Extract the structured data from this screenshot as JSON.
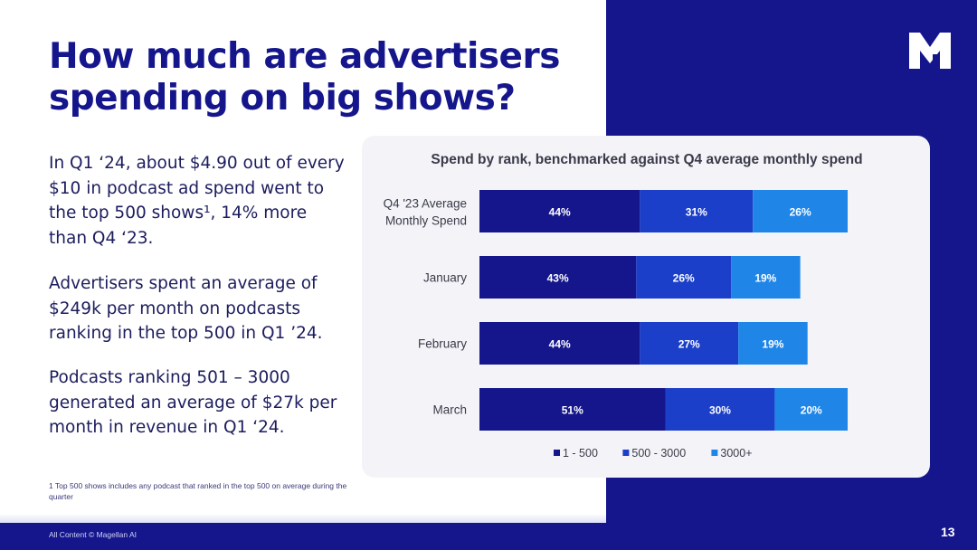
{
  "slide": {
    "title": "How much are advertisers spending on big shows?",
    "paragraphs": [
      "In Q1 ‘24, about $4.90 out of every $10 in podcast ad spend went to the top 500 shows¹, 14% more than Q4 ‘23.",
      "Advertisers spent an average of $249k per month on podcasts ranking in the top 500 in Q1 ’24.",
      "Podcasts ranking 501 – 3000 generated an average of $27k per month in revenue in Q1 ‘24."
    ],
    "footnote": "1 Top 500 shows includes any podcast that ranked in the top 500 on average during the quarter",
    "copyright": "All Content © Magellan AI",
    "page_number": "13",
    "logo_icon": "magellan-m-logo-icon"
  },
  "colors": {
    "brand_navy": "#15168c",
    "series_1": "#15168c",
    "series_2": "#1b3fc9",
    "series_3": "#1f86e8"
  },
  "chart_data": {
    "type": "bar",
    "orientation": "horizontal",
    "stacked": true,
    "title": "Spend by rank, benchmarked against Q4 average monthly spend",
    "categories": [
      "Q4 '23 Average Monthly Spend",
      "January",
      "February",
      "March"
    ],
    "series": [
      {
        "name": "1 - 500",
        "values": [
          44,
          43,
          44,
          51
        ],
        "labels": [
          "44%",
          "43%",
          "44%",
          "51%"
        ]
      },
      {
        "name": "500 - 3000",
        "values": [
          31,
          26,
          27,
          30
        ],
        "labels": [
          "31%",
          "26%",
          "27%",
          "30%"
        ]
      },
      {
        "name": "3000+",
        "values": [
          26,
          19,
          19,
          20
        ],
        "labels": [
          "26%",
          "19%",
          "19%",
          "20%"
        ]
      }
    ],
    "legend_position": "bottom",
    "grid": false
  }
}
